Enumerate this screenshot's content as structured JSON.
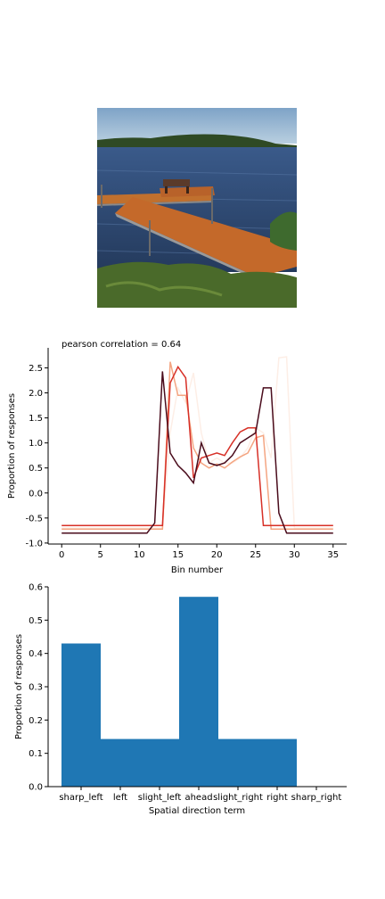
{
  "photo": {
    "subject": "lake-dock-photo"
  },
  "chart_data": [
    {
      "type": "line",
      "title": "pearson correlation = 0.64",
      "xlabel": "Bin number",
      "ylabel": "Proportion of responses",
      "xlim": [
        -1.75,
        36.75
      ],
      "ylim": [
        -1.02,
        2.9
      ],
      "xticks": [
        0,
        5,
        10,
        15,
        20,
        25,
        30,
        35
      ],
      "yticks": [
        -1.0,
        -0.5,
        0.0,
        0.5,
        1.0,
        1.5,
        2.0,
        2.5
      ],
      "x": [
        0,
        1,
        2,
        3,
        4,
        5,
        6,
        7,
        8,
        9,
        10,
        11,
        12,
        13,
        14,
        15,
        16,
        17,
        18,
        19,
        20,
        21,
        22,
        23,
        24,
        25,
        26,
        27,
        28,
        29,
        30,
        31,
        32,
        33,
        34,
        35
      ],
      "series": [
        {
          "color": "#fdeee6",
          "values": [
            -0.7,
            -0.7,
            -0.7,
            -0.7,
            -0.7,
            -0.7,
            -0.7,
            -0.7,
            -0.7,
            -0.7,
            -0.7,
            -0.7,
            -0.7,
            -0.7,
            1.2,
            2.1,
            1.8,
            2.4,
            1.2,
            0.6,
            0.7,
            0.6,
            0.6,
            0.7,
            0.9,
            1.3,
            1.2,
            0.7,
            2.7,
            2.72,
            -0.7,
            -0.7,
            -0.7,
            -0.7,
            -0.7,
            -0.7
          ]
        },
        {
          "color": "#f4a582",
          "values": [
            -0.72,
            -0.72,
            -0.72,
            -0.72,
            -0.72,
            -0.72,
            -0.72,
            -0.72,
            -0.72,
            -0.72,
            -0.72,
            -0.72,
            -0.72,
            -0.72,
            2.62,
            1.95,
            1.95,
            0.9,
            0.6,
            0.5,
            0.58,
            0.5,
            0.62,
            0.72,
            0.8,
            1.1,
            1.15,
            -0.72,
            -0.72,
            -0.72,
            -0.72,
            -0.72,
            -0.72,
            -0.72,
            -0.72,
            -0.72
          ]
        },
        {
          "color": "#d73027",
          "values": [
            -0.65,
            -0.65,
            -0.65,
            -0.65,
            -0.65,
            -0.65,
            -0.65,
            -0.65,
            -0.65,
            -0.65,
            -0.65,
            -0.65,
            -0.65,
            -0.65,
            2.2,
            2.52,
            2.3,
            0.3,
            0.7,
            0.75,
            0.8,
            0.75,
            1.0,
            1.22,
            1.3,
            1.3,
            -0.65,
            -0.65,
            -0.65,
            -0.65,
            -0.65,
            -0.65,
            -0.65,
            -0.65,
            -0.65,
            -0.65
          ]
        },
        {
          "color": "#4a0c1c",
          "values": [
            -0.8,
            -0.8,
            -0.8,
            -0.8,
            -0.8,
            -0.8,
            -0.8,
            -0.8,
            -0.8,
            -0.8,
            -0.8,
            -0.8,
            -0.6,
            2.43,
            0.8,
            0.55,
            0.4,
            0.2,
            1.0,
            0.6,
            0.55,
            0.6,
            0.75,
            1.0,
            1.1,
            1.2,
            2.1,
            2.1,
            -0.4,
            -0.8,
            -0.8,
            -0.8,
            -0.8,
            -0.8,
            -0.8,
            -0.8
          ]
        }
      ]
    },
    {
      "type": "bar",
      "xlabel": "Spatial direction term",
      "ylabel": "Proportion of responses",
      "categories": [
        "sharp_left",
        "left",
        "slight_left",
        "ahead",
        "slight_right",
        "right",
        "sharp_right"
      ],
      "values": [
        0.43,
        0.143,
        0.143,
        0.57,
        0.143,
        0.143,
        0.0
      ],
      "ylim": [
        0.0,
        0.6
      ],
      "yticks": [
        0.0,
        0.1,
        0.2,
        0.3,
        0.4,
        0.5,
        0.6
      ],
      "color": "#1f77b4"
    }
  ]
}
